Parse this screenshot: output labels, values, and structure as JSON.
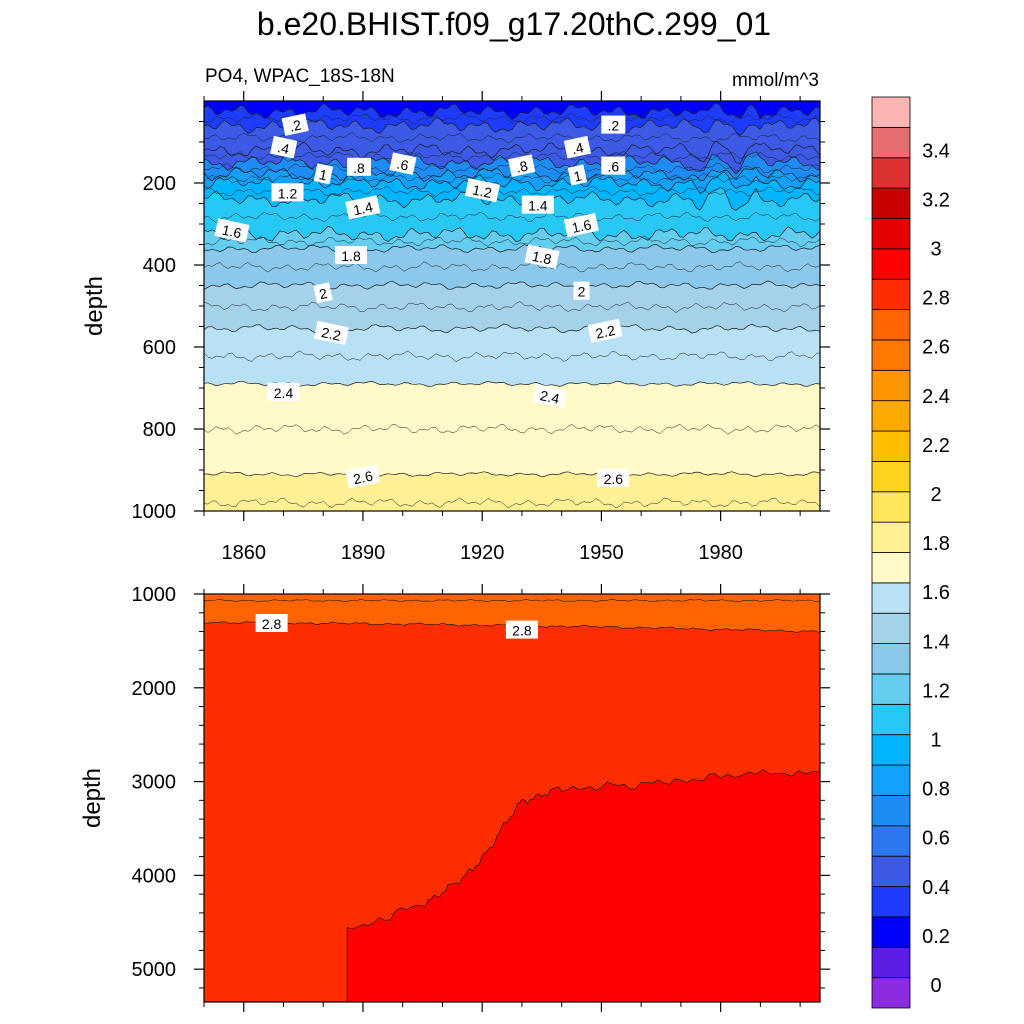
{
  "title": "b.e20.BHIST.f09_g17.20thC.299_01",
  "colors": {
    "palette": [
      "#8b2be2",
      "#5a1ee6",
      "#0000ff",
      "#1e3cff",
      "#3c5ae6",
      "#2d78f0",
      "#1e8cf5",
      "#14a0ff",
      "#00b4ff",
      "#28c8f5",
      "#64cdf0",
      "#8cc8eb",
      "#a5d2eb",
      "#b9e1f5",
      "#fffac8",
      "#fff096",
      "#ffe65a",
      "#ffd21e",
      "#ffbe00",
      "#ffaa00",
      "#ff9600",
      "#ff7800",
      "#ff6400",
      "#ff2d00",
      "#ff0000",
      "#e60000",
      "#c80000",
      "#dc3232",
      "#e66e6e",
      "#ffb4b4"
    ]
  },
  "chart_data": [
    {
      "type": "heatmap",
      "panel": "upper",
      "left_string": "PO4, WPAC_18S-18N",
      "right_string": "mmol/m^3",
      "ylabel": "depth",
      "xlim": [
        1850,
        2005
      ],
      "ylim": [
        1000,
        0
      ],
      "x_ticks": [
        1860,
        1890,
        1920,
        1950,
        1980
      ],
      "y_ticks": [
        200,
        400,
        600,
        800,
        1000
      ],
      "contours": [
        {
          "level": 0.2,
          "depth": 25
        },
        {
          "level": 0.4,
          "depth": 60
        },
        {
          "level": 0.6,
          "depth": 120
        },
        {
          "level": 0.8,
          "depth": 150
        },
        {
          "level": 1.0,
          "depth": 178
        },
        {
          "level": 1.2,
          "depth": 200
        },
        {
          "level": 1.4,
          "depth": 240
        },
        {
          "level": 1.6,
          "depth": 325
        },
        {
          "level": 1.8,
          "depth": 360
        },
        {
          "level": 2.0,
          "depth": 450
        },
        {
          "level": 2.2,
          "depth": 555
        },
        {
          "level": 2.4,
          "depth": 690
        },
        {
          "level": 2.6,
          "depth": 910
        },
        {
          "level": 2.8,
          "depth": 1050
        }
      ],
      "labels": [
        {
          "text": ".2",
          "x": 1873,
          "depth": 60
        },
        {
          "text": ".2",
          "x": 1953,
          "depth": 60
        },
        {
          "text": ".4",
          "x": 1870,
          "depth": 115
        },
        {
          "text": ".4",
          "x": 1944,
          "depth": 115
        },
        {
          "text": ".8",
          "x": 1889,
          "depth": 163
        },
        {
          "text": ".6",
          "x": 1900,
          "depth": 155
        },
        {
          "text": ".8",
          "x": 1930,
          "depth": 160
        },
        {
          "text": ".6",
          "x": 1953,
          "depth": 160
        },
        {
          "text": "1",
          "x": 1880,
          "depth": 180
        },
        {
          "text": "1",
          "x": 1944,
          "depth": 183
        },
        {
          "text": "1.2",
          "x": 1871,
          "depth": 225
        },
        {
          "text": "1.2",
          "x": 1920,
          "depth": 220
        },
        {
          "text": "1.4",
          "x": 1890,
          "depth": 262
        },
        {
          "text": "1.4",
          "x": 1934,
          "depth": 255
        },
        {
          "text": "1.6",
          "x": 1857,
          "depth": 318
        },
        {
          "text": "1.6",
          "x": 1945,
          "depth": 305
        },
        {
          "text": "1.8",
          "x": 1887,
          "depth": 378
        },
        {
          "text": "1.8",
          "x": 1935,
          "depth": 382
        },
        {
          "text": "2",
          "x": 1880,
          "depth": 470
        },
        {
          "text": "2",
          "x": 1945,
          "depth": 465
        },
        {
          "text": "2.2",
          "x": 1882,
          "depth": 568
        },
        {
          "text": "2.2",
          "x": 1951,
          "depth": 563
        },
        {
          "text": "2.4",
          "x": 1870,
          "depth": 712
        },
        {
          "text": "2.4",
          "x": 1937,
          "depth": 722
        },
        {
          "text": "2.6",
          "x": 1890,
          "depth": 918
        },
        {
          "text": "2.6",
          "x": 1953,
          "depth": 922
        }
      ]
    },
    {
      "type": "heatmap",
      "panel": "lower",
      "ylabel": "depth",
      "xlim": [
        1850,
        2005
      ],
      "ylim": [
        5350,
        1000
      ],
      "y_ticks": [
        1000,
        2000,
        3000,
        4000,
        5000
      ],
      "contours": [
        {
          "level": 2.8,
          "points": [
            [
              1850,
              1300
            ],
            [
              1900,
              1320
            ],
            [
              1950,
              1350
            ],
            [
              2005,
              1400
            ]
          ]
        },
        {
          "level": 3.0,
          "points": [
            [
              1886,
              5350
            ],
            [
              1886,
              4600
            ],
            [
              1905,
              4300
            ],
            [
              1915,
              4050
            ],
            [
              1922,
              3700
            ],
            [
              1930,
              3200
            ],
            [
              1940,
              3080
            ],
            [
              1960,
              3030
            ],
            [
              1980,
              2950
            ],
            [
              2005,
              2900
            ]
          ]
        }
      ],
      "labels": [
        {
          "text": "2.8",
          "x": 1867,
          "depth": 1320
        },
        {
          "text": "2.8",
          "x": 1930,
          "depth": 1390
        }
      ]
    }
  ],
  "colorbar": {
    "labels": [
      "0",
      "0.2",
      "0.4",
      "0.6",
      "0.8",
      "1",
      "1.2",
      "1.4",
      "1.6",
      "1.8",
      "2",
      "2.2",
      "2.4",
      "2.6",
      "2.8",
      "3",
      "3.2",
      "3.4"
    ]
  }
}
